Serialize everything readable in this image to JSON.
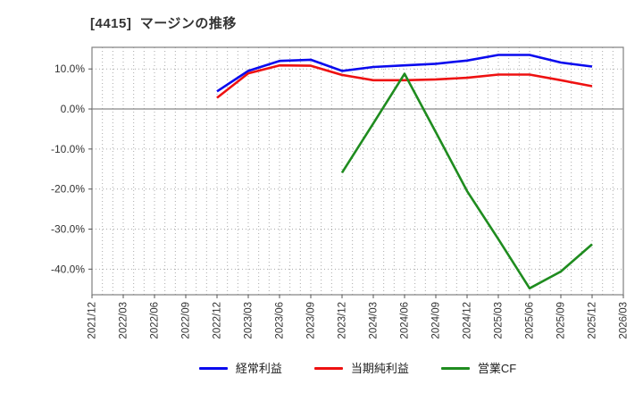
{
  "chart_data": {
    "type": "line",
    "title": "[4415]  マージンの推移",
    "x_tick_labels": [
      "2021/12",
      "2022/03",
      "2022/06",
      "2022/09",
      "2022/12",
      "2023/03",
      "2023/06",
      "2023/09",
      "2023/12",
      "2024/03",
      "2024/06",
      "2024/09",
      "2024/12",
      "2025/03",
      "2025/06",
      "2025/09",
      "2025/12",
      "2026/03"
    ],
    "y_ticks": [
      {
        "value": 10,
        "label": "10.0%"
      },
      {
        "value": 0,
        "label": "0.0%"
      },
      {
        "value": -10,
        "label": "-10.0%"
      },
      {
        "value": -20,
        "label": "-20.0%"
      },
      {
        "value": -30,
        "label": "-30.0%"
      },
      {
        "value": -40,
        "label": "-40.0%"
      }
    ],
    "ylim": [
      -46.4,
      15.4
    ],
    "grid": {
      "x_minor_intervals_per_quarter": 3,
      "gridline_style": "dotted",
      "zero_line": "solid"
    },
    "legend_position": "bottom",
    "series": [
      {
        "name": "経常利益",
        "color": "#0a0aee",
        "start_index": 4,
        "values": [
          4.4,
          9.5,
          12.0,
          12.3,
          9.5,
          10.5,
          10.9,
          11.3,
          12.1,
          13.5,
          13.5,
          11.6,
          10.6
        ]
      },
      {
        "name": "当期純利益",
        "color": "#ee1111",
        "start_index": 4,
        "values": [
          2.8,
          8.9,
          10.9,
          10.8,
          8.5,
          7.2,
          7.2,
          7.4,
          7.8,
          8.6,
          8.6,
          7.2,
          5.7
        ]
      },
      {
        "name": "営業CF",
        "color": "#1f8c1f",
        "start_index": 8,
        "values": [
          -15.9,
          -3.6,
          8.8,
          -5.8,
          -20.5,
          -32.5,
          -44.8,
          -40.6,
          -33.8
        ]
      }
    ],
    "colors": {
      "plot_border": "#808080",
      "gridline": "#aaaaaa",
      "zero_line": "#888888",
      "tick": "#555555",
      "tick_label": "#333333",
      "background": "#ffffff"
    }
  }
}
